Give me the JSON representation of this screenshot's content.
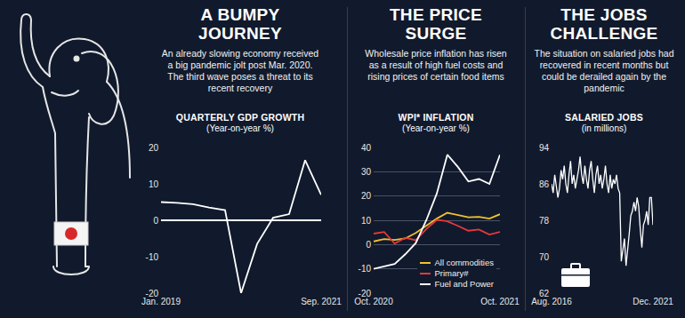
{
  "chart_data": [
    {
      "type": "line",
      "title": "A BUMPY JOURNEY",
      "subtitle": "An already slowing economy received a big pandemic jolt post Mar. 2020. The third wave poses a threat to its recent recovery",
      "heading": "QUARTERLY GDP GROWTH",
      "ylabel": "(Year-on-year %)",
      "categories": [
        "Jan. 2019",
        null,
        null,
        null,
        null,
        null,
        null,
        null,
        null,
        null,
        "Sep. 2021"
      ],
      "values": [
        5.0,
        4.8,
        4.4,
        3.5,
        2.8,
        -20.0,
        -6.5,
        0.7,
        1.7,
        16.5,
        7.0
      ],
      "color": "#ffffff",
      "ylim": [
        -20,
        20
      ],
      "yticks": [
        -20,
        -10,
        0,
        10,
        20
      ],
      "grid": false
    },
    {
      "type": "line",
      "title": "THE PRICE SURGE",
      "subtitle": "Wholesale price inflation has risen as a result of high fuel costs and rising prices of certain food items",
      "heading": "WPI* INFLATION",
      "ylabel": "(Year-on-year %)",
      "categories": [
        "Oct. 2020",
        null,
        null,
        null,
        null,
        null,
        null,
        null,
        null,
        null,
        null,
        null,
        "Oct. 2021"
      ],
      "series": [
        {
          "name": "All commodities",
          "color": "#f2c12e",
          "values": [
            1.3,
            2.3,
            1.9,
            2.5,
            4.8,
            7.9,
            10.7,
            13.1,
            12.1,
            11.2,
            11.4,
            10.7,
            12.5
          ]
        },
        {
          "name": "Primary#",
          "color": "#e8383d",
          "values": [
            4.5,
            5.2,
            0.4,
            2.8,
            1.8,
            6.4,
            10.2,
            9.6,
            7.7,
            5.7,
            6.2,
            4.1,
            5.2
          ]
        },
        {
          "name": "Fuel and Power",
          "color": "#ffffff",
          "values": [
            -10.0,
            -9.0,
            -8.0,
            -4.0,
            0.6,
            10.0,
            21.0,
            37.0,
            32.0,
            26.0,
            27.0,
            25.0,
            37.0
          ]
        }
      ],
      "ylim": [
        -20,
        40
      ],
      "yticks": [
        -20,
        -10,
        0,
        10,
        20,
        30,
        40
      ],
      "grid": true,
      "legend": "lower right"
    },
    {
      "type": "line",
      "title": "THE JOBS CHALLENGE",
      "subtitle": "The situation on salaried jobs had recovered in recent months but could be derailed again by the pandemic",
      "heading": "SALARIED JOBS",
      "ylabel": "(in millions)",
      "categories": [
        "Aug. 2016",
        null,
        null,
        null,
        null,
        null,
        null,
        null,
        null,
        null,
        null,
        null,
        null,
        null,
        null,
        null,
        null,
        null,
        null,
        null,
        null,
        null,
        null,
        null,
        null,
        null,
        null,
        null,
        null,
        null,
        null,
        null,
        null,
        null,
        null,
        null,
        null,
        null,
        null,
        null,
        null,
        null,
        null,
        null,
        null,
        null,
        null,
        null,
        null,
        null,
        null,
        null,
        null,
        null,
        null,
        null,
        null,
        null,
        null,
        null,
        null,
        null,
        null,
        null,
        "Dec. 2021"
      ],
      "values": [
        86,
        84,
        88,
        85,
        83,
        85,
        89,
        87,
        90,
        86,
        84,
        88,
        91,
        86,
        88,
        85,
        87,
        89,
        92,
        88,
        86,
        90,
        87,
        85,
        89,
        91,
        87,
        84,
        88,
        90,
        86,
        88,
        85,
        87,
        90,
        86,
        84,
        88,
        85,
        87,
        86,
        88,
        85,
        84,
        69,
        72,
        74,
        68,
        71,
        75,
        79,
        80,
        82,
        80,
        83,
        81,
        76,
        72,
        77,
        78,
        80,
        77,
        83,
        83,
        77
      ],
      "color": "#ffffff",
      "ylim": [
        62,
        94
      ],
      "yticks": [
        62,
        70,
        78,
        86,
        94
      ],
      "grid": false
    }
  ]
}
